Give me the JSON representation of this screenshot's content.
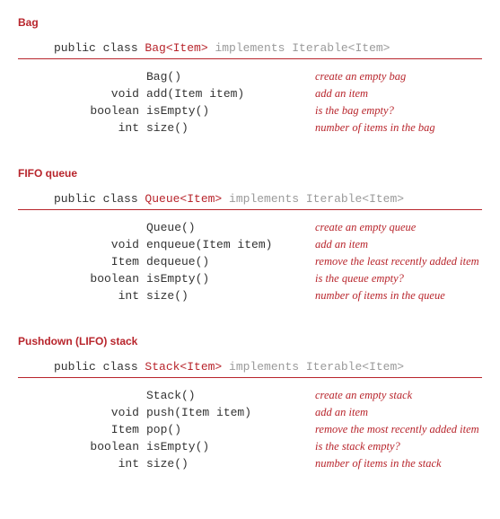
{
  "colors": {
    "accent": "#b8252c",
    "muted": "#9a9a9a",
    "text": "#333333",
    "background": "#ffffff"
  },
  "typography": {
    "title_family": "sans-serif",
    "title_size_pt": 12,
    "mono_family": "monospace",
    "mono_size_pt": 13,
    "desc_family": "serif",
    "desc_size_pt": 12.5
  },
  "sections": [
    {
      "title": "Bag",
      "sig_public": "public class ",
      "sig_class": "Bag<Item>",
      "sig_impl": " implements Iterable<Item>",
      "methods": [
        {
          "ret": "",
          "sig": "Bag()",
          "desc": "create an empty bag"
        },
        {
          "ret": "void",
          "sig": "add(Item item)",
          "desc": "add an item"
        },
        {
          "ret": "boolean",
          "sig": "isEmpty()",
          "desc": "is the bag empty?"
        },
        {
          "ret": "int",
          "sig": "size()",
          "desc": "number of items in the bag"
        }
      ]
    },
    {
      "title": "FIFO queue",
      "sig_public": "public class ",
      "sig_class": "Queue<Item>",
      "sig_impl": " implements Iterable<Item>",
      "methods": [
        {
          "ret": "",
          "sig": "Queue()",
          "desc": "create an empty queue"
        },
        {
          "ret": "void",
          "sig": "enqueue(Item item)",
          "desc": "add an item"
        },
        {
          "ret": "Item",
          "sig": "dequeue()",
          "desc": "remove the least recently added item"
        },
        {
          "ret": "boolean",
          "sig": "isEmpty()",
          "desc": "is the queue empty?"
        },
        {
          "ret": "int",
          "sig": "size()",
          "desc": "number of items in the queue"
        }
      ]
    },
    {
      "title": "Pushdown (LIFO) stack",
      "sig_public": "public class ",
      "sig_class": "Stack<Item>",
      "sig_impl": " implements Iterable<Item>",
      "methods": [
        {
          "ret": "",
          "sig": "Stack()",
          "desc": "create an empty stack"
        },
        {
          "ret": "void",
          "sig": "push(Item item)",
          "desc": "add an item"
        },
        {
          "ret": "Item",
          "sig": "pop()",
          "desc": "remove the most recently added item"
        },
        {
          "ret": "boolean",
          "sig": "isEmpty()",
          "desc": "is the stack empty?"
        },
        {
          "ret": "int",
          "sig": "size()",
          "desc": "number of items in the stack"
        }
      ]
    }
  ]
}
